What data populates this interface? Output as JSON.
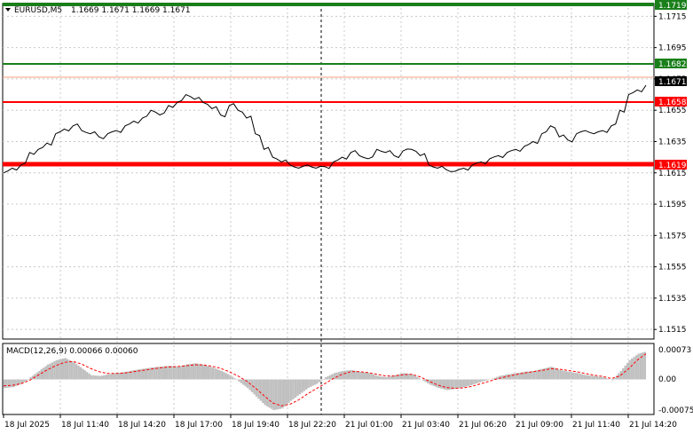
{
  "header": {
    "symbol_timeframe": "EURUSD,M5",
    "ohlc": "1.1669 1.1671 1.1669 1.1671"
  },
  "macd": {
    "label": "MACD(12,26,9) 0.00066 0.00060",
    "levels": [
      "0.00073",
      "0.00",
      "-0.00075"
    ]
  },
  "levels": {
    "top_green": "1.1719",
    "green": "1.1682",
    "current": "1.1671",
    "red_upper": "1.1658",
    "red_lower": "1.1619"
  },
  "price_axis_ticks": [
    "1.1715",
    "1.1695",
    "1.1675",
    "1.1655",
    "1.1635",
    "1.1615",
    "1.1595",
    "1.1575",
    "1.1555",
    "1.1535",
    "1.1515"
  ],
  "time_axis_ticks": [
    "18 Jul 2025",
    "18 Jul 11:40",
    "18 Jul 14:20",
    "18 Jul 17:00",
    "18 Jul 19:40",
    "18 Jul 22:20",
    "21 Jul 01:00",
    "21 Jul 03:40",
    "21 Jul 06:20",
    "21 Jul 09:00",
    "21 Jul 11:40",
    "21 Jul 14:20"
  ],
  "colors": {
    "green_line": "#1a7f1a",
    "red_line": "#ff0000",
    "price_line": "#000000",
    "macd_hist": "#c0c0c0",
    "macd_signal": "#ff0000"
  },
  "chart_data": {
    "type": "line",
    "series": [
      {
        "values": [
          1.1615,
          1.1618,
          1.162,
          1.1628,
          1.163,
          1.1634,
          1.164,
          1.1643,
          1.1645,
          1.1642,
          1.164,
          1.1638,
          1.164,
          1.1642,
          1.1645,
          1.1648,
          1.165,
          1.1655,
          1.1652,
          1.1658,
          1.166,
          1.1665,
          1.1662,
          1.166,
          1.1656,
          1.1652,
          1.1658,
          1.1655,
          1.165,
          1.164,
          1.163,
          1.1625,
          1.1622,
          1.162,
          1.1618,
          1.162,
          1.1618,
          1.1619,
          1.1622,
          1.1625,
          1.1628,
          1.1626,
          1.1624,
          1.163,
          1.1628,
          1.1626,
          1.1629,
          1.163,
          1.1626,
          1.162,
          1.1618,
          1.1617,
          1.1616,
          1.1618,
          1.162,
          1.1622,
          1.1624,
          1.1626,
          1.1628,
          1.163,
          1.1632,
          1.1635,
          1.164,
          1.1645,
          1.1638,
          1.1636,
          1.164,
          1.1642,
          1.164,
          1.1642,
          1.1645,
          1.1655,
          1.1665,
          1.1668,
          1.1671
        ]
      }
    ],
    "macd_hist": [
      -0.0002,
      -0.00018,
      -0.0001,
      5e-05,
      0.0002,
      0.00035,
      0.00045,
      0.0005,
      0.0004,
      0.00025,
      0.0001,
      8e-05,
      0.00012,
      0.00015,
      0.00018,
      0.00022,
      0.00025,
      0.00028,
      0.0003,
      0.00032,
      0.0003,
      0.00035,
      0.00038,
      0.00034,
      0.00028,
      0.0002,
      0.0001,
      -5e-05,
      -0.0002,
      -0.0004,
      -0.0006,
      -0.00072,
      -0.00068,
      -0.0005,
      -0.00035,
      -0.0002,
      -0.0001,
      5e-05,
      0.00015,
      0.0002,
      0.00022,
      0.00018,
      0.00015,
      8e-05,
      5e-05,
      0.0001,
      0.00015,
      0.00012,
      0.0,
      -0.00012,
      -0.0002,
      -0.00025,
      -0.00022,
      -0.00018,
      -0.00012,
      -5e-05,
      0.0,
      8e-05,
      0.00012,
      0.00015,
      0.00018,
      0.0002,
      0.00025,
      0.0003,
      0.00022,
      0.00018,
      0.00015,
      0.0001,
      8e-05,
      5e-05,
      -2e-05,
      0.0002,
      0.00045,
      0.0006,
      0.00066
    ],
    "macd_signal": [
      -0.00015,
      -0.00014,
      -0.0001,
      -2e-05,
      0.0001,
      0.00022,
      0.00032,
      0.0004,
      0.00042,
      0.00036,
      0.00026,
      0.00018,
      0.00014,
      0.00014,
      0.00015,
      0.00018,
      0.00021,
      0.00024,
      0.00027,
      0.00029,
      0.0003,
      0.00032,
      0.00034,
      0.00034,
      0.00031,
      0.00026,
      0.00018,
      8e-05,
      -4e-05,
      -0.0002,
      -0.00038,
      -0.00055,
      -0.00062,
      -0.00058,
      -0.00048,
      -0.00034,
      -0.00022,
      -0.0001,
      2e-05,
      0.00012,
      0.00018,
      0.00018,
      0.00016,
      0.00012,
      8e-05,
      8e-05,
      0.00011,
      0.00012,
      6e-05,
      -4e-05,
      -0.00013,
      -0.00019,
      -0.00021,
      -0.0002,
      -0.00016,
      -0.0001,
      -4e-05,
      2e-05,
      7e-05,
      0.00011,
      0.00015,
      0.00018,
      0.00021,
      0.00025,
      0.00024,
      0.00021,
      0.00018,
      0.00014,
      0.0001,
      7e-05,
      2e-05,
      8e-05,
      0.00025,
      0.00045,
      0.0006
    ],
    "ylim": [
      1.151,
      1.1722
    ],
    "macd_ylim": [
      -0.0008,
      0.0008
    ]
  }
}
